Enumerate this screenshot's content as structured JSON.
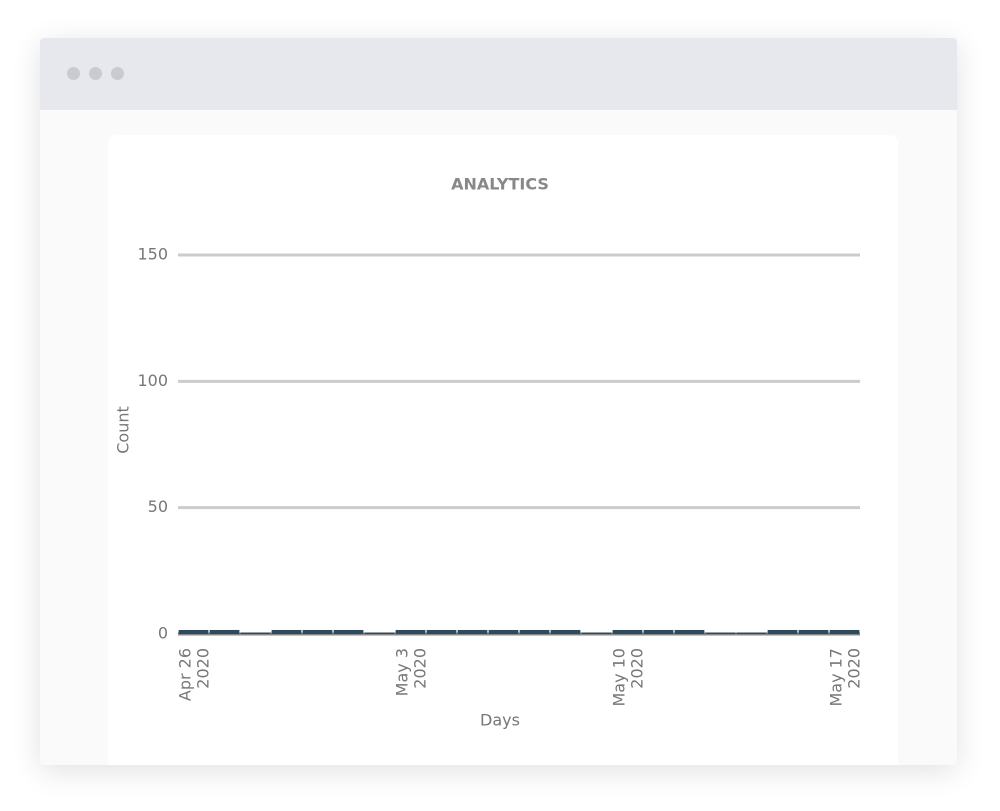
{
  "chart_data": {
    "type": "bar",
    "title": "ANALYTICS",
    "x_label": "Days",
    "y_label": "Count",
    "categories": [
      "Apr 26 2020",
      null,
      null,
      null,
      null,
      null,
      null,
      "May 3 2020",
      null,
      null,
      null,
      null,
      null,
      null,
      "May 10 2020",
      null,
      null,
      null,
      null,
      null,
      null,
      "May 17 2020"
    ],
    "values": [
      1,
      1,
      0,
      1,
      1,
      1,
      0,
      1,
      1,
      1,
      1,
      1,
      1,
      0,
      1,
      1,
      1,
      0,
      0,
      1,
      1,
      1
    ],
    "color": "#2e4a5e",
    "ylim": [
      0,
      150
    ],
    "yticks": [
      0,
      50,
      100,
      150
    ],
    "grid": true
  }
}
